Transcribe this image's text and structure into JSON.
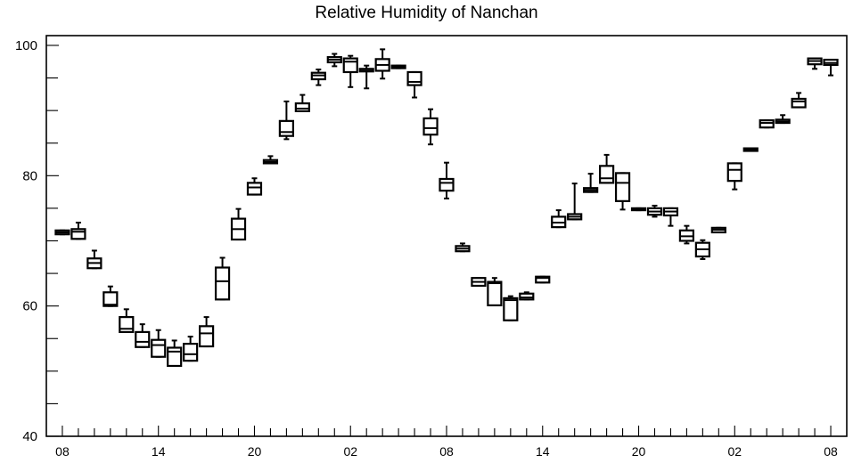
{
  "chart_data": {
    "type": "box",
    "title": "Relative Humidity of Nanchan",
    "xlabel": "",
    "ylabel": "",
    "ylim": [
      40,
      101.5
    ],
    "yticks": [
      40,
      60,
      80,
      100
    ],
    "xtick_labels": [
      "08",
      "14",
      "20",
      "02",
      "08",
      "14",
      "20",
      "02",
      "08"
    ],
    "xtick_positions": [
      1,
      7,
      13,
      19,
      25,
      31,
      37,
      43,
      49
    ],
    "grid": false,
    "boxes": [
      {
        "x": 1,
        "q1": 71.0,
        "median": 71.3,
        "q3": 71.6,
        "min": 71.0,
        "max": 71.6
      },
      {
        "x": 2,
        "q1": 70.3,
        "median": 71.4,
        "q3": 71.8,
        "min": 70.3,
        "max": 72.8
      },
      {
        "x": 3,
        "q1": 65.8,
        "median": 66.6,
        "q3": 67.3,
        "min": 65.8,
        "max": 68.5
      },
      {
        "x": 4,
        "q1": 60.0,
        "median": 60.2,
        "q3": 62.1,
        "min": 60.0,
        "max": 63.0
      },
      {
        "x": 5,
        "q1": 56.0,
        "median": 56.5,
        "q3": 58.3,
        "min": 56.0,
        "max": 59.5
      },
      {
        "x": 6,
        "q1": 53.7,
        "median": 54.5,
        "q3": 56.0,
        "min": 53.7,
        "max": 57.2
      },
      {
        "x": 7,
        "q1": 52.2,
        "median": 54.0,
        "q3": 54.8,
        "min": 52.2,
        "max": 56.3
      },
      {
        "x": 8,
        "q1": 50.8,
        "median": 53.0,
        "q3": 53.6,
        "min": 50.8,
        "max": 54.7
      },
      {
        "x": 9,
        "q1": 51.6,
        "median": 52.6,
        "q3": 54.2,
        "min": 51.6,
        "max": 55.3
      },
      {
        "x": 10,
        "q1": 53.8,
        "median": 55.8,
        "q3": 56.9,
        "min": 53.8,
        "max": 58.3
      },
      {
        "x": 11,
        "q1": 61.0,
        "median": 63.8,
        "q3": 65.9,
        "min": 61.0,
        "max": 67.4
      },
      {
        "x": 12,
        "q1": 70.2,
        "median": 71.8,
        "q3": 73.4,
        "min": 70.2,
        "max": 74.9
      },
      {
        "x": 13,
        "q1": 77.1,
        "median": 78.2,
        "q3": 78.9,
        "min": 77.1,
        "max": 79.6
      },
      {
        "x": 14,
        "q1": 81.9,
        "median": 82.1,
        "q3": 82.4,
        "min": 81.9,
        "max": 83.0
      },
      {
        "x": 15,
        "q1": 86.1,
        "median": 86.7,
        "q3": 88.4,
        "min": 85.6,
        "max": 91.4
      },
      {
        "x": 16,
        "q1": 89.9,
        "median": 90.3,
        "q3": 91.1,
        "min": 89.9,
        "max": 92.4
      },
      {
        "x": 17,
        "q1": 94.8,
        "median": 95.4,
        "q3": 95.8,
        "min": 93.9,
        "max": 96.3
      },
      {
        "x": 18,
        "q1": 97.4,
        "median": 97.8,
        "q3": 98.2,
        "min": 96.8,
        "max": 98.7
      },
      {
        "x": 19,
        "q1": 95.9,
        "median": 97.5,
        "q3": 98.0,
        "min": 93.6,
        "max": 98.4
      },
      {
        "x": 20,
        "q1": 96.0,
        "median": 96.1,
        "q3": 96.4,
        "min": 93.4,
        "max": 96.9
      },
      {
        "x": 21,
        "q1": 96.1,
        "median": 97.0,
        "q3": 97.9,
        "min": 94.9,
        "max": 99.4
      },
      {
        "x": 22,
        "q1": 96.5,
        "median": 96.7,
        "q3": 96.9,
        "min": 96.5,
        "max": 96.9
      },
      {
        "x": 23,
        "q1": 93.9,
        "median": 94.4,
        "q3": 95.9,
        "min": 92.0,
        "max": 95.9
      },
      {
        "x": 24,
        "q1": 86.3,
        "median": 87.3,
        "q3": 88.8,
        "min": 84.8,
        "max": 90.2
      },
      {
        "x": 25,
        "q1": 77.7,
        "median": 78.9,
        "q3": 79.5,
        "min": 76.5,
        "max": 82.0
      },
      {
        "x": 26,
        "q1": 68.4,
        "median": 68.8,
        "q3": 69.2,
        "min": 68.4,
        "max": 69.6
      },
      {
        "x": 27,
        "q1": 63.1,
        "median": 63.7,
        "q3": 64.3,
        "min": 63.1,
        "max": 64.3
      },
      {
        "x": 28,
        "q1": 60.1,
        "median": 63.5,
        "q3": 63.7,
        "min": 60.1,
        "max": 64.3
      },
      {
        "x": 29,
        "q1": 57.8,
        "median": 60.9,
        "q3": 61.2,
        "min": 57.8,
        "max": 61.5
      },
      {
        "x": 30,
        "q1": 61.0,
        "median": 61.3,
        "q3": 61.9,
        "min": 61.0,
        "max": 62.1
      },
      {
        "x": 31,
        "q1": 63.6,
        "median": 64.3,
        "q3": 64.5,
        "min": 63.6,
        "max": 64.5
      },
      {
        "x": 32,
        "q1": 72.1,
        "median": 72.8,
        "q3": 73.7,
        "min": 72.1,
        "max": 74.7
      },
      {
        "x": 33,
        "q1": 73.3,
        "median": 73.7,
        "q3": 74.1,
        "min": 73.3,
        "max": 78.8
      },
      {
        "x": 34,
        "q1": 77.5,
        "median": 77.8,
        "q3": 78.1,
        "min": 77.5,
        "max": 80.3
      },
      {
        "x": 35,
        "q1": 78.9,
        "median": 79.6,
        "q3": 81.5,
        "min": 78.9,
        "max": 83.2
      },
      {
        "x": 36,
        "q1": 76.1,
        "median": 78.9,
        "q3": 80.4,
        "min": 74.8,
        "max": 80.4
      },
      {
        "x": 37,
        "q1": 74.7,
        "median": 74.8,
        "q3": 75.0,
        "min": 74.7,
        "max": 75.0
      },
      {
        "x": 38,
        "q1": 74.0,
        "median": 74.5,
        "q3": 75.0,
        "min": 73.7,
        "max": 75.4
      },
      {
        "x": 39,
        "q1": 73.9,
        "median": 74.5,
        "q3": 75.0,
        "min": 72.3,
        "max": 75.0
      },
      {
        "x": 40,
        "q1": 70.0,
        "median": 70.7,
        "q3": 71.6,
        "min": 69.6,
        "max": 72.3
      },
      {
        "x": 41,
        "q1": 67.6,
        "median": 68.7,
        "q3": 69.7,
        "min": 67.2,
        "max": 70.1
      },
      {
        "x": 42,
        "q1": 71.3,
        "median": 71.7,
        "q3": 72.0,
        "min": 71.3,
        "max": 72.0
      },
      {
        "x": 43,
        "q1": 79.2,
        "median": 80.9,
        "q3": 81.9,
        "min": 77.9,
        "max": 81.9
      },
      {
        "x": 44,
        "q1": 83.8,
        "median": 84.0,
        "q3": 84.2,
        "min": 83.8,
        "max": 84.2
      },
      {
        "x": 45,
        "q1": 87.4,
        "median": 88.1,
        "q3": 88.5,
        "min": 87.4,
        "max": 88.5
      },
      {
        "x": 46,
        "q1": 88.1,
        "median": 88.3,
        "q3": 88.6,
        "min": 88.1,
        "max": 89.3
      },
      {
        "x": 47,
        "q1": 90.5,
        "median": 91.4,
        "q3": 91.8,
        "min": 90.5,
        "max": 92.7
      },
      {
        "x": 48,
        "q1": 97.1,
        "median": 97.6,
        "q3": 98.0,
        "min": 96.4,
        "max": 98.0
      },
      {
        "x": 49,
        "q1": 97.0,
        "median": 97.3,
        "q3": 97.8,
        "min": 95.4,
        "max": 97.8
      }
    ]
  },
  "colors": {
    "axis": "#000000",
    "box_stroke": "#000000",
    "box_fill": "#ffffff"
  }
}
